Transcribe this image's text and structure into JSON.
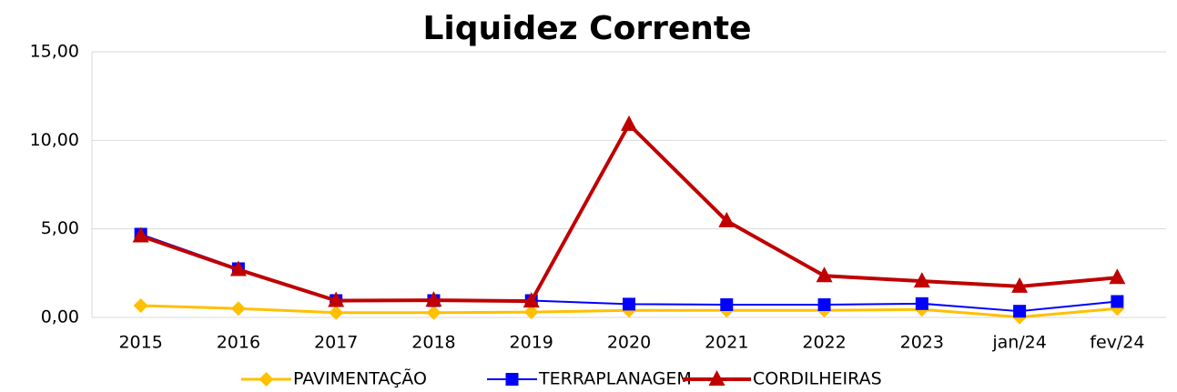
{
  "chart_data": {
    "type": "line",
    "title": "Liquidez Corrente",
    "categories": [
      "2015",
      "2016",
      "2017",
      "2018",
      "2019",
      "2020",
      "2021",
      "2022",
      "2023",
      "jan/24",
      "fev/24"
    ],
    "series": [
      {
        "name": "PAVIMENTAÇÃO",
        "color": "#ffc000",
        "marker": "diamond",
        "values": [
          0.67,
          0.5,
          0.27,
          0.27,
          0.3,
          0.4,
          0.4,
          0.4,
          0.45,
          0.02,
          0.5
        ]
      },
      {
        "name": "TERRAPLANAGEM",
        "color": "#0000ff",
        "marker": "square",
        "values": [
          4.7,
          2.75,
          0.95,
          0.95,
          0.95,
          0.75,
          0.72,
          0.72,
          0.78,
          0.35,
          0.9
        ]
      },
      {
        "name": "CORDILHEIRAS",
        "color": "#c00000",
        "marker": "triangle",
        "values": [
          4.6,
          2.7,
          0.95,
          0.97,
          0.92,
          10.9,
          5.45,
          2.35,
          2.05,
          1.75,
          2.25
        ]
      }
    ],
    "ylim": [
      0,
      15
    ],
    "yticks": [
      {
        "value": 0,
        "label": "0,00"
      },
      {
        "value": 5,
        "label": "5,00"
      },
      {
        "value": 10,
        "label": "10,00"
      },
      {
        "value": 15,
        "label": "15,00"
      }
    ],
    "grid": true,
    "legend": "bottom"
  }
}
